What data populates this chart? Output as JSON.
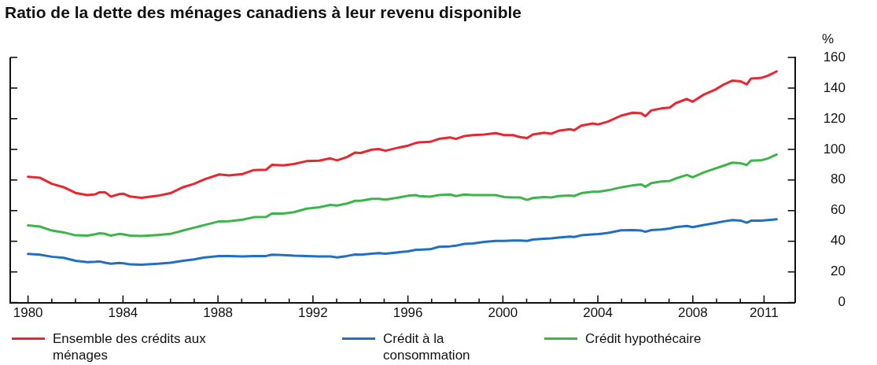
{
  "chart_data": {
    "type": "line",
    "title": "Ratio de la dette des ménages canadiens à leur revenu disponible",
    "ylabel": "%",
    "x": [
      1980,
      1980.5,
      1981,
      1981.5,
      1982,
      1982.5,
      1982.84,
      1983.02,
      1983.25,
      1983.49,
      1983.84,
      1984.03,
      1984.3,
      1984.77,
      1985.47,
      1986,
      1986.53,
      1987,
      1987.46,
      1988.05,
      1988.46,
      1989.04,
      1989.51,
      1990.03,
      1990.27,
      1990.74,
      1991.2,
      1991.73,
      1992.26,
      1992.73,
      1993.02,
      1993.43,
      1993.78,
      1994.01,
      1994.48,
      1994.77,
      1995.06,
      1995.53,
      1996,
      1996.35,
      1996.46,
      1996.94,
      1997.3,
      1997.78,
      1998.02,
      1998.38,
      1998.74,
      1999.22,
      1999.7,
      2000.06,
      2000.42,
      2000.72,
      2001.02,
      2001.26,
      2001.74,
      2002.04,
      2002.34,
      2002.82,
      2003,
      2003.3,
      2003.78,
      2004.02,
      2004.44,
      2004.98,
      2005.47,
      2005.83,
      2006,
      2006.25,
      2006.67,
      2007.03,
      2007.27,
      2007.75,
      2007.99,
      2008.47,
      2008.95,
      2009.31,
      2009.67,
      2010.03,
      2010.27,
      2010.45,
      2010.87,
      2011.17,
      2011.53
    ],
    "series": [
      {
        "name": "Ensemble des crédits aux ménages",
        "color": "#e8262f",
        "values": [
          82.1,
          81.5,
          77.5,
          75.3,
          71.6,
          70.1,
          70.7,
          72.0,
          72.0,
          69.2,
          70.8,
          71.0,
          69.2,
          68.3,
          69.7,
          71.4,
          75.3,
          77.5,
          80.6,
          83.6,
          83.0,
          83.9,
          86.5,
          86.7,
          89.9,
          89.5,
          90.4,
          92.3,
          92.6,
          94.1,
          92.8,
          95.0,
          97.9,
          97.6,
          99.8,
          100.2,
          99.1,
          100.9,
          102.4,
          104.2,
          104.5,
          104.9,
          106.8,
          107.8,
          106.8,
          108.7,
          109.3,
          109.7,
          110.6,
          109.3,
          109.3,
          108.0,
          107.4,
          109.7,
          110.8,
          110.2,
          112.1,
          113.1,
          112.5,
          115.5,
          116.9,
          116.3,
          118.2,
          122.0,
          123.9,
          123.5,
          121.6,
          125.4,
          126.7,
          127.3,
          130.1,
          132.9,
          131.1,
          135.8,
          139.0,
          142.4,
          144.9,
          144.3,
          142.4,
          146.2,
          146.6,
          148.1,
          150.9
        ]
      },
      {
        "name": "Crédit à la consommation",
        "color": "#1f6fc5",
        "values": [
          31.7,
          31.2,
          29.9,
          29.2,
          27.3,
          26.4,
          26.6,
          26.8,
          26.0,
          25.3,
          25.8,
          25.6,
          24.9,
          24.7,
          25.3,
          26.0,
          27.3,
          28.2,
          29.5,
          30.4,
          30.3,
          30.1,
          30.4,
          30.4,
          31.2,
          31.0,
          30.6,
          30.4,
          30.1,
          30.1,
          29.5,
          30.4,
          31.4,
          31.2,
          31.9,
          32.3,
          31.9,
          32.7,
          33.4,
          34.5,
          34.5,
          34.8,
          36.4,
          36.7,
          37.1,
          38.3,
          38.6,
          39.6,
          40.2,
          40.2,
          40.5,
          40.5,
          40.2,
          41.1,
          41.7,
          41.9,
          42.4,
          43.0,
          42.8,
          43.9,
          44.5,
          44.7,
          45.5,
          47.2,
          47.3,
          47.0,
          46.2,
          47.3,
          47.7,
          48.3,
          49.2,
          50.0,
          49.2,
          50.6,
          51.9,
          53.0,
          53.8,
          53.4,
          52.1,
          53.4,
          53.4,
          53.8,
          54.4
        ]
      },
      {
        "name": "Crédit hypothécaire",
        "color": "#3cb44a",
        "values": [
          50.4,
          49.6,
          47.0,
          45.8,
          43.9,
          43.7,
          44.6,
          45.2,
          44.8,
          43.7,
          44.8,
          44.5,
          43.7,
          43.4,
          44.1,
          44.8,
          47.0,
          48.9,
          50.7,
          53.0,
          53.1,
          54.1,
          55.7,
          55.9,
          58.1,
          58.1,
          59.0,
          61.3,
          62.2,
          63.7,
          63.3,
          64.6,
          66.4,
          66.4,
          67.7,
          67.7,
          67.2,
          68.3,
          69.7,
          70.1,
          69.5,
          69.1,
          70.1,
          70.5,
          69.5,
          70.5,
          70.1,
          70.1,
          70.1,
          68.9,
          68.6,
          68.6,
          67.0,
          68.2,
          68.9,
          68.6,
          69.5,
          69.9,
          69.5,
          71.4,
          72.3,
          72.3,
          73.3,
          75.2,
          76.5,
          77.1,
          75.6,
          78.0,
          79.0,
          79.4,
          80.9,
          83.3,
          81.8,
          85.0,
          87.5,
          89.4,
          91.3,
          90.9,
          89.8,
          92.6,
          92.8,
          94.1,
          96.6
        ]
      }
    ],
    "xlim": [
      1979.25,
      2012.3
    ],
    "xticks": [
      1980,
      {
        "value": 1981,
        "label": null
      },
      {
        "value": 1982,
        "label": null
      },
      {
        "value": 1983,
        "label": null
      },
      1984,
      {
        "value": 1985,
        "label": null
      },
      {
        "value": 1986,
        "label": null
      },
      {
        "value": 1987,
        "label": null
      },
      1988,
      {
        "value": 1989,
        "label": null
      },
      {
        "value": 1990,
        "label": null
      },
      {
        "value": 1991,
        "label": null
      },
      1992,
      {
        "value": 1993,
        "label": null
      },
      {
        "value": 1994,
        "label": null
      },
      {
        "value": 1995,
        "label": null
      },
      1996,
      {
        "value": 1997,
        "label": null
      },
      {
        "value": 1998,
        "label": null
      },
      {
        "value": 1999,
        "label": null
      },
      2000,
      {
        "value": 2001,
        "label": null
      },
      {
        "value": 2002,
        "label": null
      },
      {
        "value": 2003,
        "label": null
      },
      2004,
      {
        "value": 2005,
        "label": null
      },
      {
        "value": 2006,
        "label": null
      },
      {
        "value": 2007,
        "label": null
      },
      2008,
      {
        "value": 2009,
        "label": null
      },
      {
        "value": 2010,
        "label": null
      },
      2011
    ],
    "ylim": [
      0,
      160
    ],
    "yticks": [
      0,
      20,
      40,
      60,
      80,
      100,
      120,
      140,
      160
    ],
    "grid": false,
    "legend": "bottom",
    "marker": "none",
    "line_style": "solid"
  }
}
